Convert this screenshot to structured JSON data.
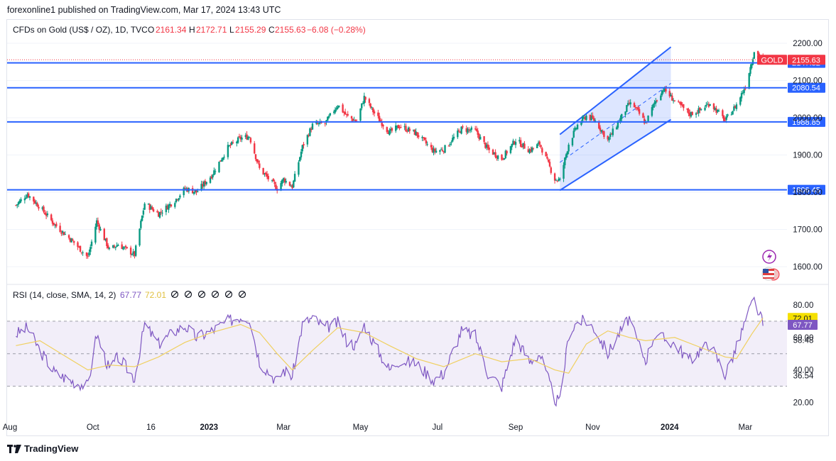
{
  "header": {
    "publisher_line": "forexonline1 published on TradingView.com, Mar 17, 2024 13:43 UTC"
  },
  "footer": {
    "brand": "TradingView",
    "logo_icon": "tradingview-logo-icon"
  },
  "colors": {
    "up": "#089981",
    "down": "#f23645",
    "hline": "#2962ff",
    "channel_fill": "#2962ff",
    "rsi_line": "#7e57c2",
    "rsi_ma": "#f0d060",
    "rsi_band": "#7e57c2",
    "label_blue": "#2962ff",
    "gold_label": "#f23645"
  },
  "chart_data": [
    {
      "type": "candlestick",
      "symbol_title": "CFDs on Gold (US$ / OZ), 1D, TVC",
      "ohlc": {
        "o_label": "O",
        "o": "2161.34",
        "h_label": "H",
        "h": "2172.71",
        "l_label": "L",
        "l": "2155.29",
        "c_label": "C",
        "c": "2155.63",
        "change": "−6.08 (−0.28%)"
      },
      "x_tick_labels": [
        "Aug",
        "Oct",
        "16",
        "2023",
        "Mar",
        "May",
        "Jul",
        "Sep",
        "Nov",
        "2024",
        "Mar"
      ],
      "y_tick_labels": [
        "2200.00",
        "2100.00",
        "2000.00",
        "1900.00",
        "1800.00",
        "1700.00",
        "1600.00"
      ],
      "y_ticks": [
        2200,
        2100,
        2000,
        1900,
        1800,
        1700,
        1600
      ],
      "ylim": [
        1580,
        2225
      ],
      "horizontal_levels": [
        {
          "value": 2147.32,
          "label": "2147.32"
        },
        {
          "value": 2080.54,
          "label": "2080.54"
        },
        {
          "value": 1988.85,
          "label": "1988.85"
        },
        {
          "value": 1806.45,
          "label": "1806.45"
        }
      ],
      "last_price": {
        "value": 2155.63,
        "label": "2155.63",
        "symbol": "GOLD"
      },
      "channel": {
        "start_date": "2023-10-06",
        "end_date": "2024-01-02",
        "lower_start": 1805,
        "lower_end": 1995,
        "upper_start": 1955,
        "upper_end": 2190
      },
      "series": [
        {
          "name": "Gold",
          "points": [
            [
              "2022-08-01",
              1765
            ],
            [
              "2022-08-10",
              1795
            ],
            [
              "2022-08-20",
              1760
            ],
            [
              "2022-09-01",
              1712
            ],
            [
              "2022-09-15",
              1668
            ],
            [
              "2022-09-27",
              1625
            ],
            [
              "2022-10-04",
              1722
            ],
            [
              "2022-10-14",
              1645
            ],
            [
              "2022-10-21",
              1660
            ],
            [
              "2022-11-03",
              1632
            ],
            [
              "2022-11-11",
              1770
            ],
            [
              "2022-11-22",
              1742
            ],
            [
              "2022-12-05",
              1778
            ],
            [
              "2022-12-13",
              1810
            ],
            [
              "2022-12-22",
              1800
            ],
            [
              "2023-01-03",
              1845
            ],
            [
              "2023-01-16",
              1920
            ],
            [
              "2023-01-26",
              1945
            ],
            [
              "2023-02-02",
              1950
            ],
            [
              "2023-02-10",
              1863
            ],
            [
              "2023-02-24",
              1810
            ],
            [
              "2023-03-01",
              1835
            ],
            [
              "2023-03-08",
              1815
            ],
            [
              "2023-03-16",
              1922
            ],
            [
              "2023-03-24",
              1980
            ],
            [
              "2023-04-03",
              1985
            ],
            [
              "2023-04-13",
              2035
            ],
            [
              "2023-04-20",
              2005
            ],
            [
              "2023-04-28",
              1990
            ],
            [
              "2023-05-04",
              2055
            ],
            [
              "2023-05-12",
              2012
            ],
            [
              "2023-05-24",
              1960
            ],
            [
              "2023-06-01",
              1978
            ],
            [
              "2023-06-14",
              1958
            ],
            [
              "2023-06-28",
              1910
            ],
            [
              "2023-07-06",
              1915
            ],
            [
              "2023-07-20",
              1970
            ],
            [
              "2023-07-31",
              1965
            ],
            [
              "2023-08-10",
              1915
            ],
            [
              "2023-08-21",
              1890
            ],
            [
              "2023-09-01",
              1940
            ],
            [
              "2023-09-12",
              1912
            ],
            [
              "2023-09-20",
              1930
            ],
            [
              "2023-10-02",
              1835
            ],
            [
              "2023-10-06",
              1832
            ],
            [
              "2023-10-13",
              1930
            ],
            [
              "2023-10-20",
              1980
            ],
            [
              "2023-10-27",
              2005
            ],
            [
              "2023-11-03",
              1992
            ],
            [
              "2023-11-13",
              1940
            ],
            [
              "2023-11-20",
              1980
            ],
            [
              "2023-11-30",
              2038
            ],
            [
              "2023-12-04",
              2030
            ],
            [
              "2023-12-13",
              1985
            ],
            [
              "2023-12-20",
              2040
            ],
            [
              "2023-12-27",
              2078
            ],
            [
              "2024-01-05",
              2045
            ],
            [
              "2024-01-17",
              2010
            ],
            [
              "2024-01-25",
              2020
            ],
            [
              "2024-02-02",
              2040
            ],
            [
              "2024-02-14",
              1992
            ],
            [
              "2024-02-23",
              2035
            ],
            [
              "2024-03-01",
              2085
            ],
            [
              "2024-03-06",
              2150
            ],
            [
              "2024-03-08",
              2180
            ],
            [
              "2024-03-15",
              2155
            ]
          ]
        }
      ]
    },
    {
      "type": "line",
      "indicator_title": "RSI (14, close, SMA, 14, 2)",
      "rsi_value_label": "67.77",
      "ma_value_label": "72.01",
      "status_icon": "circle-slash-icon",
      "status_icon_count": 6,
      "y_tick_labels": [
        "80.00",
        "60.00",
        "58.48",
        "40.00",
        "36.54",
        "20.00"
      ],
      "ylim": [
        16,
        86
      ],
      "bands": {
        "upper": 70,
        "middle": 50,
        "lower": 30
      },
      "pinned_labels": [
        {
          "value": 72.01,
          "label": "72.01",
          "role": "ma"
        },
        {
          "value": 67.77,
          "label": "67.77",
          "role": "rsi"
        }
      ],
      "series": [
        {
          "name": "RSI",
          "points": [
            [
              "2022-08-01",
              62
            ],
            [
              "2022-08-10",
              66
            ],
            [
              "2022-08-20",
              52
            ],
            [
              "2022-09-01",
              38
            ],
            [
              "2022-09-15",
              33
            ],
            [
              "2022-09-27",
              30
            ],
            [
              "2022-10-04",
              62
            ],
            [
              "2022-10-14",
              40
            ],
            [
              "2022-10-21",
              48
            ],
            [
              "2022-11-03",
              35
            ],
            [
              "2022-11-11",
              68
            ],
            [
              "2022-11-22",
              56
            ],
            [
              "2022-12-05",
              64
            ],
            [
              "2022-12-13",
              67
            ],
            [
              "2022-12-22",
              60
            ],
            [
              "2023-01-03",
              64
            ],
            [
              "2023-01-16",
              70
            ],
            [
              "2023-01-26",
              73
            ],
            [
              "2023-02-02",
              72
            ],
            [
              "2023-02-10",
              45
            ],
            [
              "2023-02-24",
              33
            ],
            [
              "2023-03-01",
              40
            ],
            [
              "2023-03-08",
              36
            ],
            [
              "2023-03-16",
              68
            ],
            [
              "2023-03-24",
              72
            ],
            [
              "2023-04-03",
              66
            ],
            [
              "2023-04-13",
              69
            ],
            [
              "2023-04-20",
              58
            ],
            [
              "2023-04-28",
              55
            ],
            [
              "2023-05-04",
              68
            ],
            [
              "2023-05-12",
              56
            ],
            [
              "2023-05-24",
              40
            ],
            [
              "2023-06-01",
              46
            ],
            [
              "2023-06-14",
              44
            ],
            [
              "2023-06-28",
              34
            ],
            [
              "2023-07-06",
              38
            ],
            [
              "2023-07-20",
              64
            ],
            [
              "2023-07-31",
              61
            ],
            [
              "2023-08-10",
              38
            ],
            [
              "2023-08-21",
              30
            ],
            [
              "2023-09-01",
              60
            ],
            [
              "2023-09-12",
              45
            ],
            [
              "2023-09-20",
              50
            ],
            [
              "2023-10-02",
              22
            ],
            [
              "2023-10-06",
              20
            ],
            [
              "2023-10-13",
              62
            ],
            [
              "2023-10-20",
              70
            ],
            [
              "2023-10-27",
              70
            ],
            [
              "2023-11-03",
              65
            ],
            [
              "2023-11-13",
              50
            ],
            [
              "2023-11-20",
              60
            ],
            [
              "2023-11-30",
              72
            ],
            [
              "2023-12-04",
              62
            ],
            [
              "2023-12-13",
              46
            ],
            [
              "2023-12-20",
              62
            ],
            [
              "2024-01-05",
              56
            ],
            [
              "2024-01-17",
              46
            ],
            [
              "2024-01-25",
              52
            ],
            [
              "2024-02-02",
              56
            ],
            [
              "2024-02-14",
              37
            ],
            [
              "2024-02-23",
              54
            ],
            [
              "2024-03-01",
              70
            ],
            [
              "2024-03-06",
              80
            ],
            [
              "2024-03-08",
              83
            ],
            [
              "2024-03-15",
              68
            ]
          ]
        },
        {
          "name": "RSI-based MA",
          "points": [
            [
              "2022-08-01",
              55
            ],
            [
              "2022-08-20",
              58
            ],
            [
              "2022-09-10",
              48
            ],
            [
              "2022-09-27",
              40
            ],
            [
              "2022-10-14",
              43
            ],
            [
              "2022-11-03",
              42
            ],
            [
              "2022-11-22",
              48
            ],
            [
              "2022-12-13",
              57
            ],
            [
              "2023-01-03",
              63
            ],
            [
              "2023-01-26",
              68
            ],
            [
              "2023-02-10",
              63
            ],
            [
              "2023-02-24",
              50
            ],
            [
              "2023-03-08",
              40
            ],
            [
              "2023-03-24",
              52
            ],
            [
              "2023-04-13",
              66
            ],
            [
              "2023-05-04",
              63
            ],
            [
              "2023-05-24",
              55
            ],
            [
              "2023-06-14",
              47
            ],
            [
              "2023-07-06",
              42
            ],
            [
              "2023-07-31",
              50
            ],
            [
              "2023-08-21",
              45
            ],
            [
              "2023-09-12",
              47
            ],
            [
              "2023-10-02",
              40
            ],
            [
              "2023-10-13",
              38
            ],
            [
              "2023-10-27",
              56
            ],
            [
              "2023-11-13",
              64
            ],
            [
              "2023-11-30",
              60
            ],
            [
              "2023-12-13",
              58
            ],
            [
              "2024-01-05",
              60
            ],
            [
              "2024-01-25",
              54
            ],
            [
              "2024-02-14",
              48
            ],
            [
              "2024-02-23",
              47
            ],
            [
              "2024-03-06",
              62
            ],
            [
              "2024-03-15",
              72
            ]
          ]
        }
      ]
    }
  ],
  "side_icons": [
    "flash-icon",
    "us-flag-icon"
  ]
}
